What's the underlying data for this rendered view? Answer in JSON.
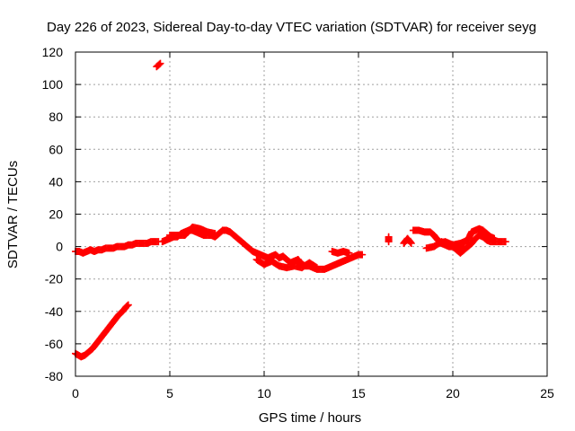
{
  "chart_data": {
    "type": "scatter",
    "title": "Day 226 of 2023, Sidereal Day-to-day VTEC variation (SDTVAR) for receiver seyg",
    "xlabel": "GPS time / hours",
    "ylabel": "SDTVAR / TECUs",
    "xlim": [
      0,
      25
    ],
    "ylim": [
      -80,
      120
    ],
    "xticks": [
      0,
      5,
      10,
      15,
      20,
      25
    ],
    "yticks": [
      -80,
      -60,
      -40,
      -20,
      0,
      20,
      40,
      60,
      80,
      100,
      120
    ],
    "grid": true,
    "marker": "+",
    "color": "#ff0000",
    "series": [
      {
        "name": "sdtvar",
        "segments": [
          [
            [
              0.0,
              -66
            ],
            [
              0.15,
              -67
            ],
            [
              0.3,
              -68
            ],
            [
              0.5,
              -67
            ],
            [
              0.7,
              -65
            ],
            [
              0.9,
              -63
            ],
            [
              1.1,
              -60
            ],
            [
              1.3,
              -57
            ],
            [
              1.5,
              -54
            ],
            [
              1.7,
              -51
            ],
            [
              1.9,
              -48
            ],
            [
              2.1,
              -45
            ],
            [
              2.3,
              -42
            ],
            [
              2.5,
              -40
            ],
            [
              2.7,
              -37
            ],
            [
              2.8,
              -36
            ]
          ],
          [
            [
              0.0,
              -3
            ],
            [
              0.2,
              -3
            ],
            [
              0.4,
              -4
            ],
            [
              0.6,
              -3
            ],
            [
              0.8,
              -2
            ],
            [
              1.0,
              -3
            ],
            [
              1.2,
              -2
            ],
            [
              1.4,
              -2
            ],
            [
              1.6,
              -1
            ],
            [
              1.8,
              -1
            ],
            [
              2.0,
              -1
            ],
            [
              2.2,
              0
            ],
            [
              2.4,
              0
            ],
            [
              2.6,
              0
            ],
            [
              2.8,
              1
            ],
            [
              3.0,
              1
            ],
            [
              3.2,
              2
            ],
            [
              3.4,
              2
            ],
            [
              3.6,
              2
            ],
            [
              3.8,
              2
            ],
            [
              4.0,
              3
            ],
            [
              4.2,
              3
            ],
            [
              4.4,
              3
            ]
          ],
          [
            [
              4.3,
              111
            ],
            [
              4.4,
              112
            ],
            [
              4.5,
              113
            ]
          ],
          [
            [
              4.6,
              3
            ],
            [
              4.8,
              4
            ],
            [
              5.0,
              5
            ],
            [
              5.2,
              6
            ],
            [
              5.4,
              6
            ],
            [
              5.6,
              8
            ],
            [
              5.8,
              9
            ],
            [
              6.0,
              10
            ],
            [
              6.2,
              10
            ],
            [
              6.4,
              9
            ],
            [
              6.6,
              8
            ],
            [
              6.8,
              7
            ],
            [
              7.0,
              7
            ],
            [
              7.2,
              7
            ],
            [
              7.4,
              6
            ],
            [
              7.6,
              8
            ],
            [
              7.8,
              10
            ],
            [
              8.0,
              10
            ],
            [
              8.2,
              9
            ],
            [
              8.4,
              7
            ],
            [
              8.6,
              5
            ],
            [
              8.8,
              3
            ],
            [
              9.0,
              1
            ],
            [
              9.2,
              -1
            ],
            [
              9.4,
              -3
            ],
            [
              9.6,
              -4
            ],
            [
              9.8,
              -5
            ],
            [
              10.0,
              -6
            ],
            [
              10.2,
              -7
            ],
            [
              10.4,
              -6
            ],
            [
              10.6,
              -5
            ],
            [
              10.8,
              -7
            ],
            [
              11.0,
              -6
            ],
            [
              11.2,
              -8
            ],
            [
              11.4,
              -10
            ],
            [
              11.6,
              -9
            ],
            [
              11.8,
              -8
            ],
            [
              12.0,
              -11
            ],
            [
              12.2,
              -12
            ],
            [
              12.4,
              -12
            ],
            [
              12.6,
              -13
            ],
            [
              12.8,
              -14
            ],
            [
              13.0,
              -14
            ],
            [
              13.2,
              -14
            ],
            [
              13.4,
              -13
            ],
            [
              13.6,
              -12
            ],
            [
              13.8,
              -11
            ],
            [
              14.0,
              -10
            ],
            [
              14.2,
              -9
            ],
            [
              14.4,
              -8
            ],
            [
              14.6,
              -7
            ],
            [
              14.8,
              -6
            ],
            [
              15.0,
              -5
            ],
            [
              15.2,
              -5
            ]
          ],
          [
            [
              5.0,
              7
            ],
            [
              5.4,
              7
            ],
            [
              5.8,
              7
            ],
            [
              6.2,
              12
            ],
            [
              6.6,
              11
            ],
            [
              7.0,
              9
            ],
            [
              7.4,
              8
            ]
          ],
          [
            [
              9.6,
              -8
            ],
            [
              10.0,
              -11
            ],
            [
              10.4,
              -9
            ],
            [
              10.8,
              -12
            ],
            [
              11.2,
              -13
            ],
            [
              11.6,
              -12
            ],
            [
              12.0,
              -13
            ],
            [
              12.4,
              -10
            ],
            [
              12.8,
              -13
            ]
          ],
          [
            [
              13.6,
              -3
            ],
            [
              13.9,
              -4
            ],
            [
              14.2,
              -3
            ],
            [
              14.5,
              -4
            ]
          ],
          [
            [
              16.6,
              6
            ],
            [
              16.6,
              3
            ]
          ],
          [
            [
              17.4,
              2
            ],
            [
              17.6,
              5
            ],
            [
              17.8,
              2
            ]
          ],
          [
            [
              17.9,
              10
            ],
            [
              18.2,
              10
            ],
            [
              18.5,
              9
            ],
            [
              18.8,
              9
            ],
            [
              19.0,
              7
            ],
            [
              19.2,
              4
            ],
            [
              19.4,
              2
            ],
            [
              19.6,
              1
            ],
            [
              19.8,
              0
            ],
            [
              20.0,
              0
            ],
            [
              20.2,
              -2
            ],
            [
              20.4,
              -4
            ],
            [
              20.6,
              -2
            ],
            [
              20.8,
              0
            ],
            [
              21.0,
              2
            ],
            [
              21.2,
              5
            ],
            [
              21.4,
              7
            ],
            [
              21.6,
              6
            ],
            [
              21.8,
              4
            ],
            [
              22.0,
              3
            ],
            [
              22.2,
              3
            ],
            [
              22.4,
              3
            ],
            [
              22.6,
              3
            ],
            [
              22.8,
              3
            ]
          ],
          [
            [
              19.2,
              2
            ],
            [
              19.6,
              3
            ],
            [
              20.0,
              1
            ],
            [
              20.4,
              2
            ],
            [
              20.8,
              4
            ],
            [
              21.0,
              9
            ],
            [
              21.2,
              10
            ],
            [
              21.4,
              11
            ],
            [
              21.6,
              10
            ],
            [
              21.8,
              8
            ],
            [
              22.0,
              6
            ],
            [
              22.2,
              5
            ]
          ],
          [
            [
              18.6,
              -1
            ],
            [
              19.0,
              0
            ],
            [
              19.4,
              3
            ],
            [
              20.2,
              -1
            ],
            [
              20.6,
              0
            ]
          ]
        ]
      }
    ]
  }
}
